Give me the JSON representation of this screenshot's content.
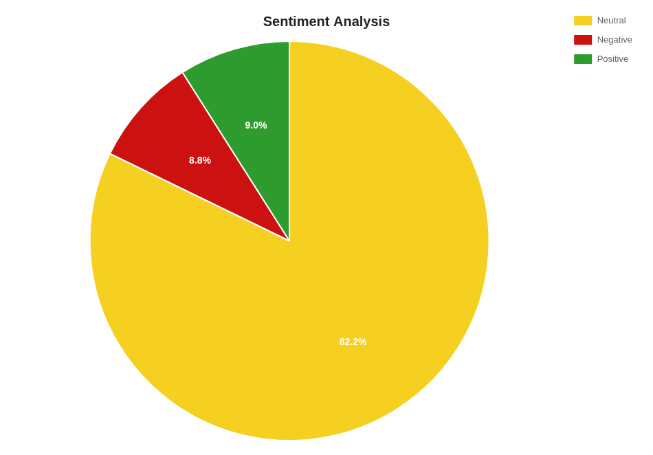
{
  "chart_data": {
    "type": "pie",
    "title": "Sentiment Analysis",
    "categories": [
      "Neutral",
      "Negative",
      "Positive"
    ],
    "values": [
      82.2,
      8.8,
      9.0
    ],
    "value_labels": [
      "82.2%",
      "8.8%",
      "9.0%"
    ],
    "colors": [
      "#f5d020",
      "#cc1111",
      "#2e9b2e"
    ],
    "data_labels": true,
    "legend": "upper right"
  }
}
